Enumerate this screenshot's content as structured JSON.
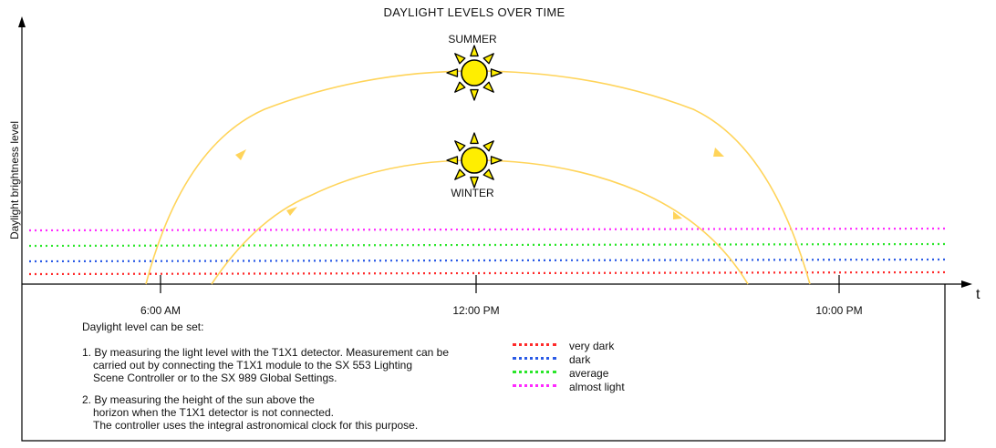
{
  "title": "DAYLIGHT LEVELS OVER TIME",
  "y_axis_label": "Daylight brightness level",
  "x_axis_label": "t",
  "ticks": [
    "6:00 AM",
    "12:00 PM",
    "10:00 PM"
  ],
  "seasons": {
    "summer": "SUMMER",
    "winter": "WINTER"
  },
  "levels": [
    {
      "label": "very dark",
      "color": "#ff2a2a"
    },
    {
      "label": "dark",
      "color": "#2a5ae6"
    },
    {
      "label": "average",
      "color": "#2ae62a"
    },
    {
      "label": "almost light",
      "color": "#ff2aff"
    }
  ],
  "arc_color": "#ffd45a",
  "sun_color": "#ffee00",
  "notes": {
    "intro": "Daylight level can be set:",
    "item1": [
      "1. By measuring the light level with the T1X1 detector. Measurement can be",
      "carried out by connecting the T1X1 module to the SX 553 Lighting",
      "Scene Controller or to the SX 989 Global Settings."
    ],
    "item2": [
      "2. By measuring the height of the sun above the",
      "horizon when the T1X1 detector is not connected.",
      "The controller uses the integral astronomical clock for this purpose."
    ]
  }
}
